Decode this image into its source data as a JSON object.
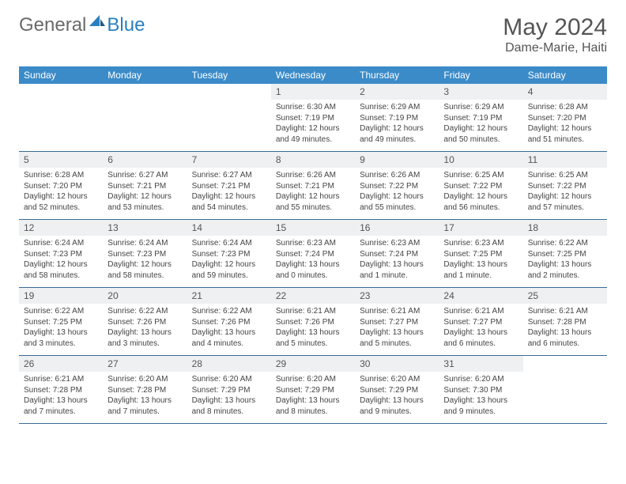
{
  "brand": {
    "part1": "General",
    "part2": "Blue"
  },
  "title": "May 2024",
  "location": "Dame-Marie, Haiti",
  "colors": {
    "header_bg": "#3b8bc9",
    "header_text": "#ffffff",
    "daynum_bg": "#eef0f1",
    "border": "#3b6a94",
    "brand_gray": "#6a6a6a",
    "brand_blue": "#2a7fbf"
  },
  "day_labels": [
    "Sunday",
    "Monday",
    "Tuesday",
    "Wednesday",
    "Thursday",
    "Friday",
    "Saturday"
  ],
  "weeks": [
    [
      null,
      null,
      null,
      {
        "n": "1",
        "sr": "6:30 AM",
        "ss": "7:19 PM",
        "dl": "12 hours and 49 minutes."
      },
      {
        "n": "2",
        "sr": "6:29 AM",
        "ss": "7:19 PM",
        "dl": "12 hours and 49 minutes."
      },
      {
        "n": "3",
        "sr": "6:29 AM",
        "ss": "7:19 PM",
        "dl": "12 hours and 50 minutes."
      },
      {
        "n": "4",
        "sr": "6:28 AM",
        "ss": "7:20 PM",
        "dl": "12 hours and 51 minutes."
      }
    ],
    [
      {
        "n": "5",
        "sr": "6:28 AM",
        "ss": "7:20 PM",
        "dl": "12 hours and 52 minutes."
      },
      {
        "n": "6",
        "sr": "6:27 AM",
        "ss": "7:21 PM",
        "dl": "12 hours and 53 minutes."
      },
      {
        "n": "7",
        "sr": "6:27 AM",
        "ss": "7:21 PM",
        "dl": "12 hours and 54 minutes."
      },
      {
        "n": "8",
        "sr": "6:26 AM",
        "ss": "7:21 PM",
        "dl": "12 hours and 55 minutes."
      },
      {
        "n": "9",
        "sr": "6:26 AM",
        "ss": "7:22 PM",
        "dl": "12 hours and 55 minutes."
      },
      {
        "n": "10",
        "sr": "6:25 AM",
        "ss": "7:22 PM",
        "dl": "12 hours and 56 minutes."
      },
      {
        "n": "11",
        "sr": "6:25 AM",
        "ss": "7:22 PM",
        "dl": "12 hours and 57 minutes."
      }
    ],
    [
      {
        "n": "12",
        "sr": "6:24 AM",
        "ss": "7:23 PM",
        "dl": "12 hours and 58 minutes."
      },
      {
        "n": "13",
        "sr": "6:24 AM",
        "ss": "7:23 PM",
        "dl": "12 hours and 58 minutes."
      },
      {
        "n": "14",
        "sr": "6:24 AM",
        "ss": "7:23 PM",
        "dl": "12 hours and 59 minutes."
      },
      {
        "n": "15",
        "sr": "6:23 AM",
        "ss": "7:24 PM",
        "dl": "13 hours and 0 minutes."
      },
      {
        "n": "16",
        "sr": "6:23 AM",
        "ss": "7:24 PM",
        "dl": "13 hours and 1 minute."
      },
      {
        "n": "17",
        "sr": "6:23 AM",
        "ss": "7:25 PM",
        "dl": "13 hours and 1 minute."
      },
      {
        "n": "18",
        "sr": "6:22 AM",
        "ss": "7:25 PM",
        "dl": "13 hours and 2 minutes."
      }
    ],
    [
      {
        "n": "19",
        "sr": "6:22 AM",
        "ss": "7:25 PM",
        "dl": "13 hours and 3 minutes."
      },
      {
        "n": "20",
        "sr": "6:22 AM",
        "ss": "7:26 PM",
        "dl": "13 hours and 3 minutes."
      },
      {
        "n": "21",
        "sr": "6:22 AM",
        "ss": "7:26 PM",
        "dl": "13 hours and 4 minutes."
      },
      {
        "n": "22",
        "sr": "6:21 AM",
        "ss": "7:26 PM",
        "dl": "13 hours and 5 minutes."
      },
      {
        "n": "23",
        "sr": "6:21 AM",
        "ss": "7:27 PM",
        "dl": "13 hours and 5 minutes."
      },
      {
        "n": "24",
        "sr": "6:21 AM",
        "ss": "7:27 PM",
        "dl": "13 hours and 6 minutes."
      },
      {
        "n": "25",
        "sr": "6:21 AM",
        "ss": "7:28 PM",
        "dl": "13 hours and 6 minutes."
      }
    ],
    [
      {
        "n": "26",
        "sr": "6:21 AM",
        "ss": "7:28 PM",
        "dl": "13 hours and 7 minutes."
      },
      {
        "n": "27",
        "sr": "6:20 AM",
        "ss": "7:28 PM",
        "dl": "13 hours and 7 minutes."
      },
      {
        "n": "28",
        "sr": "6:20 AM",
        "ss": "7:29 PM",
        "dl": "13 hours and 8 minutes."
      },
      {
        "n": "29",
        "sr": "6:20 AM",
        "ss": "7:29 PM",
        "dl": "13 hours and 8 minutes."
      },
      {
        "n": "30",
        "sr": "6:20 AM",
        "ss": "7:29 PM",
        "dl": "13 hours and 9 minutes."
      },
      {
        "n": "31",
        "sr": "6:20 AM",
        "ss": "7:30 PM",
        "dl": "13 hours and 9 minutes."
      },
      null
    ]
  ],
  "labels": {
    "sunrise": "Sunrise:",
    "sunset": "Sunset:",
    "daylight": "Daylight:"
  }
}
